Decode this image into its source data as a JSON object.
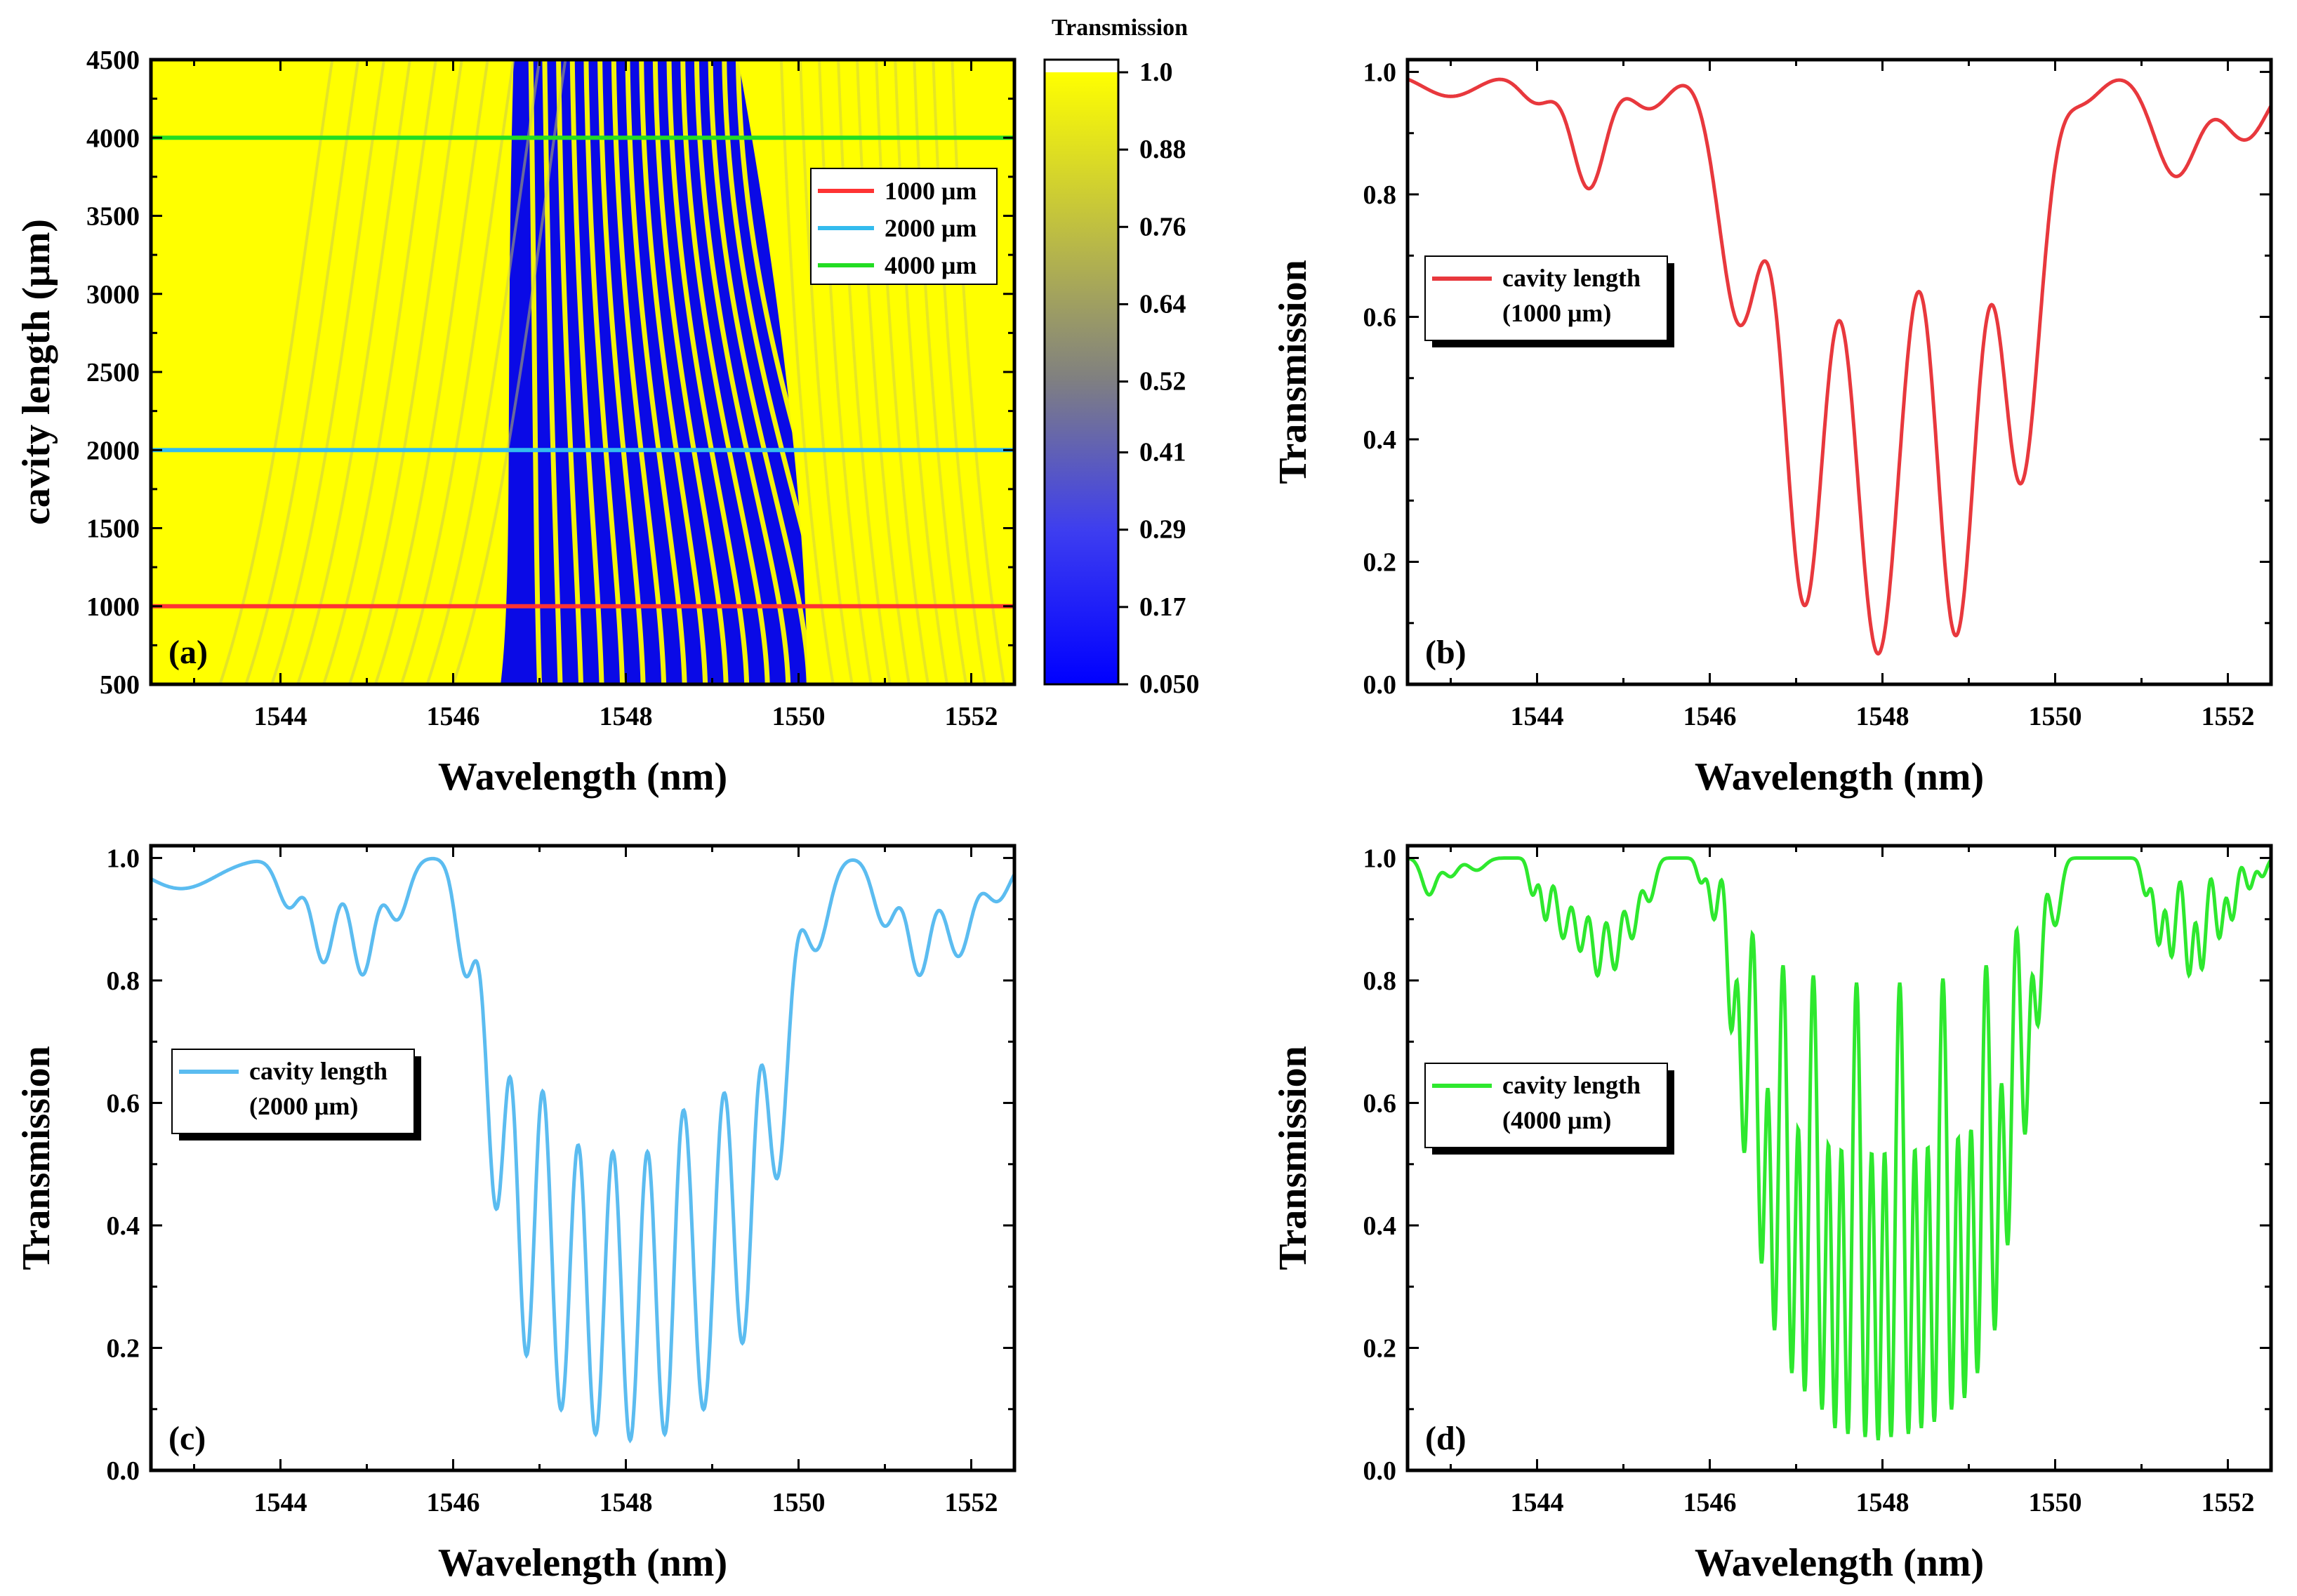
{
  "chart_data": [
    {
      "panel": "(a)",
      "type": "heatmap",
      "xlabel": "Wavelength (nm)",
      "ylabel": "cavity length (μm)",
      "xlim": [
        1542.5,
        1552.5
      ],
      "ylim": [
        500,
        4500
      ],
      "xticks": [
        1544,
        1546,
        1548,
        1550,
        1552
      ],
      "yticks": [
        500,
        1000,
        1500,
        2000,
        2500,
        3000,
        3500,
        4000,
        4500
      ],
      "colorbar": {
        "title": "Transmission",
        "range": [
          0.05,
          1.0
        ],
        "ticks": [
          "1.0",
          "0.88",
          "0.76",
          "0.64",
          "0.52",
          "0.41",
          "0.29",
          "0.17",
          "0.050"
        ],
        "colors": {
          "low": "#0000ff",
          "mid": "#808080",
          "high": "#ffff00"
        }
      },
      "markers": [
        {
          "label": "1000 μm",
          "y": 1000,
          "color": "#ff3333"
        },
        {
          "label": "2000 μm",
          "y": 2000,
          "color": "#33bbee"
        },
        {
          "label": "4000 μm",
          "y": 4000,
          "color": "#22dd22"
        }
      ],
      "legend_position": "upper-right"
    },
    {
      "panel": "(b)",
      "type": "line",
      "xlabel": "Wavelength (nm)",
      "ylabel": "Transmission",
      "xlim": [
        1542.5,
        1552.5
      ],
      "ylim": [
        0,
        1.02
      ],
      "xticks": [
        1544,
        1546,
        1548,
        1550,
        1552
      ],
      "yticks": [
        "0.0",
        "0.2",
        "0.4",
        "0.6",
        "0.8",
        "1.0"
      ],
      "series": [
        {
          "name": "cavity length",
          "name_line2": "(1000 μm)",
          "color": "#e8383d",
          "dips": [
            [
              1543.0,
              0.96
            ],
            [
              1544.0,
              0.95
            ],
            [
              1544.6,
              0.81
            ],
            [
              1545.3,
              0.94
            ],
            [
              1546.35,
              0.59
            ],
            [
              1547.1,
              0.13
            ],
            [
              1547.95,
              0.05
            ],
            [
              1548.85,
              0.08
            ],
            [
              1549.6,
              0.33
            ],
            [
              1550.3,
              0.95
            ],
            [
              1551.4,
              0.83
            ],
            [
              1552.2,
              0.89
            ]
          ]
        }
      ]
    },
    {
      "panel": "(c)",
      "type": "line",
      "xlabel": "Wavelength (nm)",
      "ylabel": "Transmission",
      "xlim": [
        1542.5,
        1552.5
      ],
      "ylim": [
        0,
        1.02
      ],
      "xticks": [
        1544,
        1546,
        1548,
        1550,
        1552
      ],
      "yticks": [
        "0.0",
        "0.2",
        "0.4",
        "0.6",
        "0.8",
        "1.0"
      ],
      "series": [
        {
          "name": "cavity length",
          "name_line2": "(2000 μm)",
          "color": "#5bbcf0",
          "dips": [
            [
              1542.85,
              0.95
            ],
            [
              1544.1,
              0.92
            ],
            [
              1544.5,
              0.83
            ],
            [
              1544.95,
              0.81
            ],
            [
              1545.35,
              0.9
            ],
            [
              1546.15,
              0.81
            ],
            [
              1546.5,
              0.43
            ],
            [
              1546.85,
              0.19
            ],
            [
              1547.25,
              0.1
            ],
            [
              1547.65,
              0.06
            ],
            [
              1548.05,
              0.05
            ],
            [
              1548.45,
              0.06
            ],
            [
              1548.9,
              0.1
            ],
            [
              1549.35,
              0.21
            ],
            [
              1549.75,
              0.48
            ],
            [
              1550.2,
              0.85
            ],
            [
              1551.0,
              0.89
            ],
            [
              1551.4,
              0.81
            ],
            [
              1551.85,
              0.84
            ],
            [
              1552.3,
              0.93
            ]
          ]
        }
      ]
    },
    {
      "panel": "(d)",
      "type": "line",
      "xlabel": "Wavelength (nm)",
      "ylabel": "Transmission",
      "xlim": [
        1542.5,
        1552.5
      ],
      "ylim": [
        0,
        1.02
      ],
      "xticks": [
        1544,
        1546,
        1548,
        1550,
        1552
      ],
      "yticks": [
        "0.0",
        "0.2",
        "0.4",
        "0.6",
        "0.8",
        "1.0"
      ],
      "series": [
        {
          "name": "cavity length",
          "name_line2": "(4000 μm)",
          "color": "#2ee82e",
          "dips": [
            [
              1542.75,
              0.94
            ],
            [
              1543.0,
              0.97
            ],
            [
              1543.3,
              0.98
            ],
            [
              1543.95,
              0.94
            ],
            [
              1544.1,
              0.9
            ],
            [
              1544.3,
              0.87
            ],
            [
              1544.5,
              0.85
            ],
            [
              1544.7,
              0.81
            ],
            [
              1544.9,
              0.82
            ],
            [
              1545.1,
              0.87
            ],
            [
              1545.3,
              0.93
            ],
            [
              1545.9,
              0.96
            ],
            [
              1546.05,
              0.9
            ],
            [
              1546.25,
              0.72
            ],
            [
              1546.4,
              0.52
            ],
            [
              1546.6,
              0.34
            ],
            [
              1546.75,
              0.23
            ],
            [
              1546.95,
              0.16
            ],
            [
              1547.1,
              0.13
            ],
            [
              1547.3,
              0.1
            ],
            [
              1547.45,
              0.07
            ],
            [
              1547.6,
              0.06
            ],
            [
              1547.8,
              0.055
            ],
            [
              1547.95,
              0.05
            ],
            [
              1548.1,
              0.055
            ],
            [
              1548.3,
              0.06
            ],
            [
              1548.45,
              0.07
            ],
            [
              1548.6,
              0.08
            ],
            [
              1548.8,
              0.1
            ],
            [
              1548.95,
              0.12
            ],
            [
              1549.1,
              0.16
            ],
            [
              1549.3,
              0.23
            ],
            [
              1549.45,
              0.37
            ],
            [
              1549.65,
              0.55
            ],
            [
              1549.8,
              0.73
            ],
            [
              1550.0,
              0.89
            ],
            [
              1551.05,
              0.94
            ],
            [
              1551.2,
              0.86
            ],
            [
              1551.35,
              0.84
            ],
            [
              1551.55,
              0.81
            ],
            [
              1551.7,
              0.82
            ],
            [
              1551.9,
              0.87
            ],
            [
              1552.05,
              0.9
            ],
            [
              1552.25,
              0.95
            ],
            [
              1552.4,
              0.97
            ]
          ]
        }
      ]
    }
  ]
}
